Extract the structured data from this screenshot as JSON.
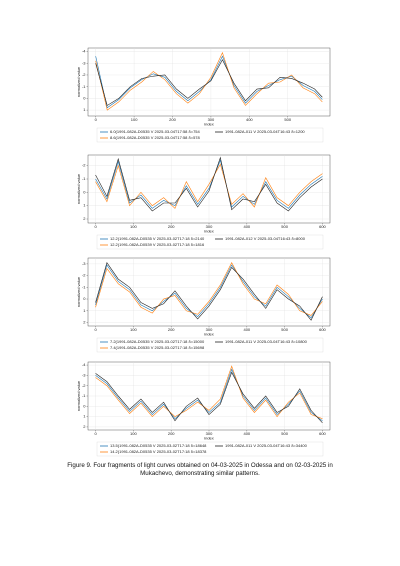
{
  "chart_data": [
    {
      "type": "line",
      "x_label": "index",
      "y_label": "normalized value",
      "x": [
        0,
        30,
        60,
        90,
        120,
        150,
        180,
        210,
        240,
        270,
        300,
        330,
        360,
        390,
        420,
        450,
        480,
        510,
        540,
        570,
        590
      ],
      "xlim": [
        -20,
        610
      ],
      "xticks": [
        0,
        100,
        200,
        300,
        400,
        500
      ],
      "ylim": [
        1.5,
        -4.3
      ],
      "yticks": [
        -4,
        -3,
        -2,
        -1,
        0,
        1
      ],
      "grid": true,
      "series": [
        {
          "name": "6.0(1991-082A-D0535 V 2025-03-04T17:58 δ=754",
          "color": "#1f77b4",
          "values": [
            -3.6,
            0.8,
            0.1,
            -0.9,
            -1.6,
            -2.1,
            -1.8,
            -0.6,
            0.2,
            -0.6,
            -1.6,
            -3.6,
            -1.1,
            0.4,
            -0.6,
            -1.1,
            -1.6,
            -1.9,
            -1.1,
            -0.6,
            0.1
          ]
        },
        {
          "name": "8.6(1991-082A-D0535 V 2025-03-04T17:58 δ=578",
          "color": "#ff7f0e",
          "values": [
            -3.2,
            1.0,
            0.3,
            -0.7,
            -1.4,
            -2.3,
            -1.6,
            -0.4,
            0.4,
            -0.4,
            -1.8,
            -3.9,
            -0.9,
            0.6,
            -0.4,
            -1.3,
            -1.4,
            -2.0,
            -0.9,
            -0.4,
            0.3
          ]
        },
        {
          "name": "1991-082A-011 V 2025-03-04T16:43 δ=1200",
          "color": "#222222",
          "values": [
            -3.0,
            0.6,
            0.0,
            -1.0,
            -1.7,
            -1.9,
            -2.0,
            -0.8,
            0.0,
            -0.8,
            -1.5,
            -3.3,
            -1.3,
            0.2,
            -0.8,
            -0.9,
            -1.8,
            -1.7,
            -1.3,
            -0.8,
            -0.1
          ]
        }
      ]
    },
    {
      "type": "line",
      "x_label": "index",
      "y_label": "normalized value",
      "x": [
        0,
        30,
        60,
        90,
        120,
        150,
        180,
        210,
        240,
        270,
        300,
        330,
        360,
        390,
        420,
        450,
        480,
        510,
        540,
        570,
        600
      ],
      "xlim": [
        -20,
        620
      ],
      "xticks": [
        0,
        100,
        200,
        300,
        400,
        500,
        600
      ],
      "ylim": [
        2.3,
        -2.8
      ],
      "yticks": [
        -2,
        -1,
        0,
        1,
        2
      ],
      "grid": true,
      "series": [
        {
          "name": "12.2(1991-082A-D0535 V 2025-03-02T17:18 δ=2140",
          "color": "#1f77b4",
          "values": [
            -1.0,
            0.5,
            -2.3,
            0.8,
            0.2,
            1.2,
            0.6,
            1.0,
            -0.5,
            0.9,
            -0.3,
            -2.4,
            1.1,
            0.3,
            0.9,
            -0.8,
            0.6,
            1.2,
            0.2,
            -0.6,
            -1.2
          ]
        },
        {
          "name": "12.2(1991-082A-D0539 V 2025-03-02T17:18 δ=1816",
          "color": "#ff7f0e",
          "values": [
            -0.8,
            0.7,
            -2.0,
            1.0,
            0.0,
            1.0,
            0.4,
            1.2,
            -0.8,
            0.7,
            -0.6,
            -2.1,
            0.9,
            0.1,
            1.1,
            -1.1,
            0.4,
            1.0,
            0.0,
            -0.8,
            -1.4
          ]
        },
        {
          "name": "1991-082A-012 V 2025-03-04T16:43 δ=8000",
          "color": "#222222",
          "values": [
            -1.3,
            0.3,
            -2.5,
            0.6,
            0.4,
            1.4,
            0.8,
            0.8,
            -0.3,
            1.1,
            -0.1,
            -2.6,
            1.3,
            0.5,
            0.7,
            -0.6,
            0.8,
            1.4,
            0.4,
            -0.4,
            -1.0
          ]
        }
      ]
    },
    {
      "type": "line",
      "x_label": "index",
      "y_label": "normalized value",
      "x": [
        0,
        30,
        60,
        90,
        120,
        150,
        180,
        210,
        240,
        270,
        300,
        330,
        360,
        390,
        420,
        450,
        480,
        510,
        540,
        570,
        600
      ],
      "xlim": [
        -20,
        620
      ],
      "xticks": [
        0,
        100,
        200,
        300,
        400,
        500,
        600
      ],
      "ylim": [
        2.3,
        -3.5
      ],
      "yticks": [
        -3,
        -2,
        -1,
        0,
        1,
        2
      ],
      "grid": true,
      "series": [
        {
          "name": "7.2(1991-082A-D0535 V 2025-03-02T17:18 δ=15000",
          "color": "#1f77b4",
          "values": [
            0.5,
            -2.9,
            -1.5,
            -0.8,
            0.5,
            1.0,
            0.2,
            -0.5,
            0.8,
            1.5,
            0.4,
            -1.0,
            -2.9,
            -1.5,
            -0.2,
            0.6,
            -1.0,
            -0.2,
            0.8,
            1.6,
            0.0
          ]
        },
        {
          "name": "7.4(1991-082A-D0535 V 2025-03-02T17:18 δ=15698",
          "color": "#ff7f0e",
          "values": [
            0.7,
            -2.6,
            -1.3,
            -0.6,
            0.7,
            1.2,
            0.0,
            -0.3,
            1.0,
            1.3,
            0.2,
            -1.2,
            -3.1,
            -1.3,
            0.0,
            0.4,
            -1.2,
            -0.4,
            1.0,
            1.4,
            0.2
          ]
        },
        {
          "name": "1991-082A-011 V 2025-03-04T16:43 δ=10800",
          "color": "#222222",
          "values": [
            0.3,
            -3.1,
            -1.7,
            -1.0,
            0.3,
            0.8,
            0.4,
            -0.7,
            0.6,
            1.7,
            0.6,
            -0.8,
            -2.7,
            -1.7,
            -0.4,
            0.8,
            -0.8,
            0.0,
            0.6,
            1.8,
            -0.2
          ]
        }
      ]
    },
    {
      "type": "line",
      "x_label": "index",
      "y_label": "normalized value",
      "x": [
        0,
        30,
        60,
        90,
        120,
        150,
        180,
        210,
        240,
        270,
        300,
        330,
        360,
        390,
        420,
        450,
        480,
        510,
        540,
        570,
        600
      ],
      "xlim": [
        -20,
        620
      ],
      "xticks": [
        0,
        100,
        200,
        300,
        400,
        500,
        600
      ],
      "ylim": [
        2.3,
        -4.3
      ],
      "yticks": [
        -4,
        -3,
        -2,
        -1,
        0,
        1,
        2
      ],
      "grid": true,
      "series": [
        {
          "name": "13.5(1991-082A-D0535 V 2025-03-02T17:18 δ=18648",
          "color": "#1f77b4",
          "values": [
            -3.0,
            -2.2,
            -0.8,
            0.5,
            -0.5,
            0.8,
            -0.2,
            1.2,
            0.2,
            -0.6,
            0.6,
            -0.4,
            -3.6,
            -1.0,
            0.4,
            -0.8,
            0.8,
            -0.2,
            -1.5,
            0.6,
            1.4
          ]
        },
        {
          "name": "14.2(1991-082A-D0535 V 2025-03-02T17:18 δ=18378",
          "color": "#ff7f0e",
          "values": [
            -2.8,
            -2.0,
            -0.6,
            0.7,
            -0.3,
            1.0,
            0.0,
            1.0,
            0.4,
            -0.4,
            0.4,
            -0.7,
            -3.9,
            -0.8,
            0.6,
            -0.6,
            1.0,
            -0.4,
            -1.3,
            0.8,
            1.2
          ]
        },
        {
          "name": "1991-082A-011 V 2025-03-04T16:43 δ=34400",
          "color": "#222222",
          "values": [
            -3.2,
            -2.4,
            -1.0,
            0.3,
            -0.7,
            0.6,
            -0.4,
            1.4,
            0.0,
            -0.8,
            0.8,
            -0.2,
            -3.3,
            -1.2,
            0.2,
            -1.0,
            0.6,
            0.0,
            -1.7,
            0.4,
            1.6
          ]
        }
      ]
    }
  ],
  "caption": "Figure 9. Four fragments of light curves obtained on 04-03-2025 in Odessa and on 02-03-2025 in Mukachevo, demonstrating similar patterns."
}
